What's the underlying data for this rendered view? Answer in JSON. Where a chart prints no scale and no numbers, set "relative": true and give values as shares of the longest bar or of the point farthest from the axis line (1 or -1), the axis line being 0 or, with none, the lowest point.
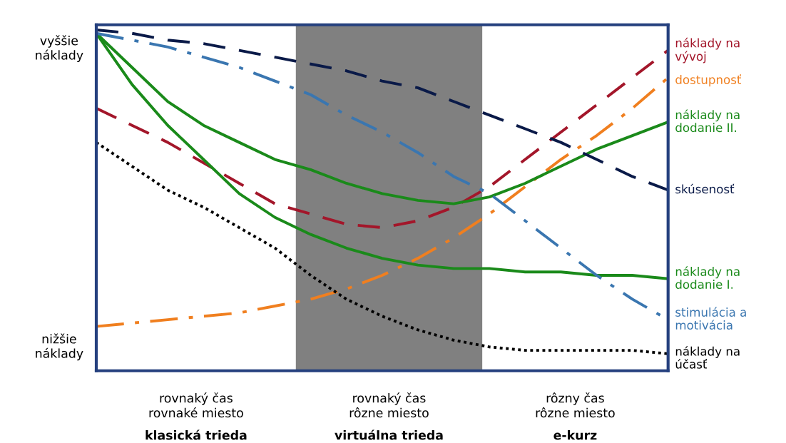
{
  "chart_data": {
    "type": "line",
    "relative": true,
    "legend": false,
    "grid": false,
    "categories": [
      null,
      null,
      null,
      null,
      null,
      null,
      null,
      null,
      null,
      null,
      null,
      null,
      null,
      null,
      null,
      null,
      null
    ],
    "series": [
      {
        "name": "náklady na vývoj",
        "color": "#a3162a",
        "line_style": "dashed",
        "values": [
          0.77,
          0.72,
          0.67,
          0.61,
          0.55,
          0.49,
          0.46,
          0.43,
          0.42,
          0.44,
          0.48,
          0.54,
          0.62,
          0.7,
          0.78,
          0.86,
          0.94
        ]
      },
      {
        "name": "dostupnosť",
        "color": "#f07f1f",
        "line_style": "dashdot",
        "values": [
          0.13,
          0.14,
          0.15,
          0.16,
          0.17,
          0.19,
          0.21,
          0.24,
          0.28,
          0.33,
          0.39,
          0.46,
          0.54,
          0.62,
          0.69,
          0.77,
          0.86
        ]
      },
      {
        "name": "náklady na dodanie II.",
        "color": "#1a8a1a",
        "line_style": "solid",
        "values": [
          0.99,
          0.89,
          0.79,
          0.72,
          0.67,
          0.62,
          0.59,
          0.55,
          0.52,
          0.5,
          0.49,
          0.51,
          0.55,
          0.6,
          0.65,
          0.69,
          0.73
        ]
      },
      {
        "name": "skúsenosť",
        "color": "#0a1a48",
        "line_style": "dashed",
        "values": [
          1.0,
          0.99,
          0.97,
          0.96,
          0.94,
          0.92,
          0.9,
          0.88,
          0.85,
          0.83,
          0.79,
          0.75,
          0.71,
          0.67,
          0.62,
          0.57,
          0.53
        ]
      },
      {
        "name": "náklady na dodanie I.",
        "color": "#1a8a1a",
        "line_style": "solid",
        "values": [
          0.99,
          0.84,
          0.72,
          0.62,
          0.52,
          0.45,
          0.4,
          0.36,
          0.33,
          0.31,
          0.3,
          0.3,
          0.29,
          0.29,
          0.28,
          0.28,
          0.27
        ]
      },
      {
        "name": "stimulácia a motivácia",
        "color": "#3a76b0",
        "line_style": "dashdot",
        "values": [
          0.99,
          0.97,
          0.95,
          0.92,
          0.89,
          0.85,
          0.81,
          0.75,
          0.7,
          0.64,
          0.57,
          0.52,
          0.44,
          0.36,
          0.28,
          0.21,
          0.15
        ]
      },
      {
        "name": "náklady na účasť",
        "color": "#000000",
        "line_style": "dotted",
        "values": [
          0.67,
          0.6,
          0.53,
          0.48,
          0.42,
          0.36,
          0.28,
          0.21,
          0.16,
          0.12,
          0.09,
          0.07,
          0.06,
          0.06,
          0.06,
          0.06,
          0.05
        ]
      }
    ],
    "annotations": [
      "vyššie\nnáklady",
      "nižšie\nnáklady",
      "rovnaký čas\nrovnaké miesto",
      "klasická trieda",
      "rovnaký čas\nrôzne miesto",
      "virtuálna trieda",
      "rôzny čas\nrôzne miesto",
      "e-kurz"
    ]
  }
}
